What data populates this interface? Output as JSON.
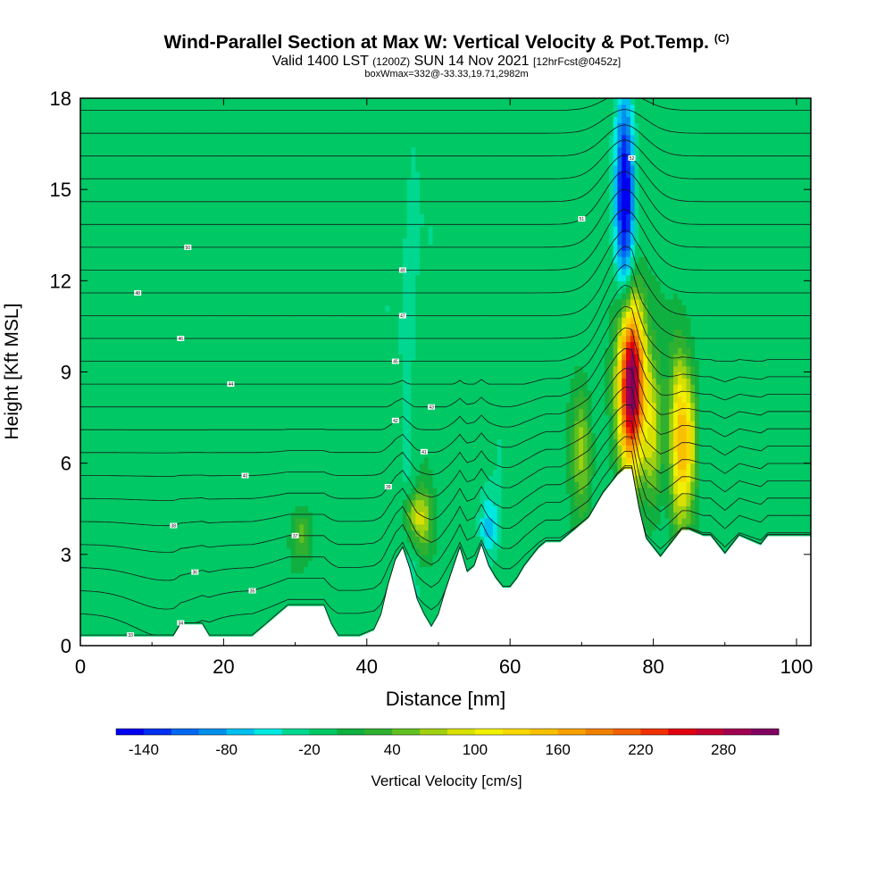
{
  "header": {
    "title_main": "Wind-Parallel Section at Max W: Vertical Velocity & Pot.Temp.",
    "title_copyright": "(C)",
    "valid_prefix": "Valid 1400 LST",
    "valid_zulu": "(1200Z)",
    "valid_date": "SUN 14 Nov 2021",
    "forecast": "[12hrFcst@0452z]",
    "boxwmax": "boxWmax=332@-33.33,19.71,2982m"
  },
  "chart_data": {
    "type": "heatmap",
    "title": "Wind-Parallel Section at Max W: Vertical Velocity & Pot.Temp.",
    "xlabel": "Distance [nm]",
    "ylabel": "Height [Kft MSL]",
    "xlim": [
      0,
      102
    ],
    "ylim": [
      0,
      18
    ],
    "x_ticks": [
      0,
      20,
      40,
      60,
      80,
      100
    ],
    "y_ticks": [
      0,
      3,
      6,
      9,
      12,
      15,
      18
    ],
    "colorbar": {
      "label": "Vertical Velocity [cm/s]",
      "tick_labels": [
        "-140",
        "-80",
        "-20",
        "40",
        "100",
        "160",
        "220",
        "280"
      ],
      "colors": [
        "#0000f0",
        "#0030f0",
        "#0068f0",
        "#0090ec",
        "#00c0f0",
        "#00e8e0",
        "#00d890",
        "#00c864",
        "#10b040",
        "#30b030",
        "#60c020",
        "#a0d010",
        "#d8e000",
        "#f0f000",
        "#f8d800",
        "#f8c000",
        "#f8a000",
        "#f08000",
        "#f06000",
        "#f03000",
        "#e00010",
        "#c00030",
        "#a00050",
        "#800060"
      ],
      "min": -160,
      "step": 20
    },
    "velocity_features": [
      {
        "x": 77,
        "y_min": 6.0,
        "y_max": 11.2,
        "peak": 332
      },
      {
        "x": 83.5,
        "y_min": 4.0,
        "y_max": 9.5,
        "peak": 130
      },
      {
        "x": 85,
        "y_min": 4.5,
        "y_max": 9.0,
        "peak": 110
      },
      {
        "x": 80,
        "y_min": 4.5,
        "y_max": 9.2,
        "peak": 90
      },
      {
        "x": 70,
        "y_min": 4.5,
        "y_max": 8.5,
        "peak": 70
      },
      {
        "x": 46.5,
        "y_min": 3.5,
        "y_max": 5.0,
        "peak": 80
      },
      {
        "x": 48,
        "y_min": 3.0,
        "y_max": 5.2,
        "peak": 70
      },
      {
        "x": 31,
        "y_min": 2.8,
        "y_max": 4.5,
        "peak": 60
      },
      {
        "x": 76,
        "y_min": 11.5,
        "y_max": 18.0,
        "peak": -150
      },
      {
        "x": 57,
        "y_min": 2.8,
        "y_max": 5.0,
        "peak": -60
      },
      {
        "x": 46,
        "y_min": 3.0,
        "y_max": 18.0,
        "peak": -20
      }
    ],
    "terrain": {
      "x": [
        0,
        13,
        14,
        17,
        18,
        24,
        25,
        26,
        27,
        28,
        29,
        34,
        35,
        36,
        37,
        39,
        41,
        42,
        43,
        44,
        45,
        46,
        47,
        48,
        49,
        50,
        51,
        52,
        53,
        54,
        55,
        56,
        57,
        58,
        59,
        60,
        61,
        62,
        63,
        64,
        65,
        67,
        68,
        69,
        71,
        72,
        73,
        74,
        75,
        76,
        77,
        78,
        79,
        81,
        82,
        83,
        84,
        85,
        87,
        88,
        90,
        91,
        92,
        95,
        96,
        102
      ],
      "height": [
        0.3,
        0.3,
        0.7,
        0.7,
        0.3,
        0.3,
        0.5,
        0.7,
        0.9,
        1.1,
        1.3,
        1.3,
        0.7,
        0.3,
        0.3,
        0.3,
        0.5,
        1.0,
        2.0,
        2.8,
        3.2,
        2.5,
        1.5,
        1.0,
        0.6,
        1.0,
        1.8,
        2.5,
        3.2,
        2.4,
        2.6,
        3.3,
        2.6,
        2.2,
        1.9,
        1.9,
        2.2,
        2.6,
        2.9,
        3.2,
        3.4,
        3.4,
        3.6,
        3.8,
        4.2,
        4.6,
        5.0,
        5.3,
        5.6,
        5.8,
        5.8,
        4.5,
        3.5,
        2.9,
        3.2,
        3.5,
        3.8,
        3.8,
        3.6,
        3.6,
        3.0,
        3.3,
        3.6,
        3.3,
        3.6,
        3.6
      ]
    },
    "theta_contours": {
      "count": 24,
      "label_count": 20,
      "label_values": [
        "33",
        "34",
        "35",
        "36",
        "37",
        "38",
        "39",
        "40",
        "41",
        "42",
        "43",
        "44",
        "45",
        "46",
        "47",
        "48",
        "49",
        "50",
        "51",
        "52"
      ]
    }
  }
}
